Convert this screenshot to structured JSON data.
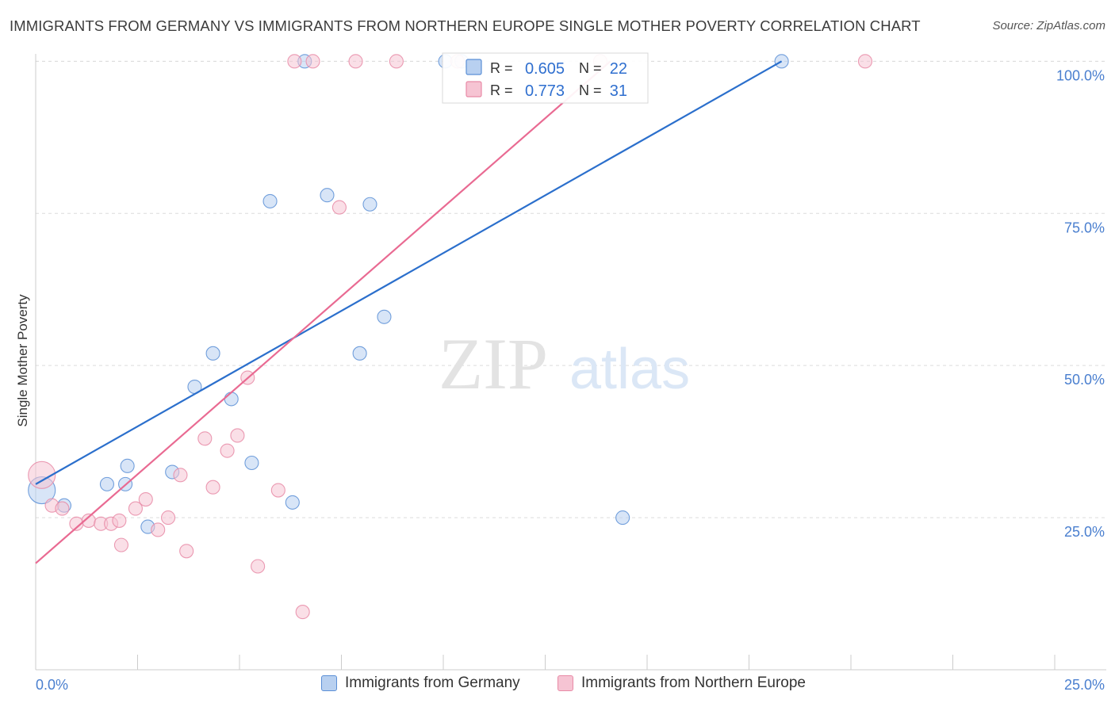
{
  "title": "IMMIGRANTS FROM GERMANY VS IMMIGRANTS FROM NORTHERN EUROPE SINGLE MOTHER POVERTY CORRELATION CHART",
  "source": "Source: ZipAtlas.com",
  "watermark": {
    "zip": "ZIP",
    "atlas": "atlas"
  },
  "chart_data": {
    "type": "scatter",
    "ylabel": "Single Mother Poverty",
    "xlim": [
      0,
      25
    ],
    "ylim": [
      0,
      102
    ],
    "x_tick_labels": [
      "0.0%",
      "25.0%"
    ],
    "y_tick_values": [
      25,
      50,
      75,
      100
    ],
    "y_tick_labels": [
      "25.0%",
      "50.0%",
      "75.0%",
      "100.0%"
    ],
    "grid": true,
    "legend_position": "top-center",
    "series": [
      {
        "name": "Immigrants from Germany",
        "color": "#5b8fd6",
        "fill": "#b8d0f0",
        "line_color": "#2b6fcc",
        "R": "0.605",
        "N": "22",
        "trend": {
          "x": [
            0.0,
            18.3
          ],
          "y": [
            30.5,
            100.0
          ]
        },
        "points": [
          {
            "x": 0.15,
            "y": 29.5,
            "big": true
          },
          {
            "x": 0.7,
            "y": 27.0
          },
          {
            "x": 1.75,
            "y": 30.5
          },
          {
            "x": 2.2,
            "y": 30.5
          },
          {
            "x": 2.25,
            "y": 33.5
          },
          {
            "x": 2.75,
            "y": 23.5
          },
          {
            "x": 3.35,
            "y": 32.5
          },
          {
            "x": 3.9,
            "y": 46.5
          },
          {
            "x": 4.35,
            "y": 52.0
          },
          {
            "x": 4.8,
            "y": 44.5
          },
          {
            "x": 5.3,
            "y": 34.0
          },
          {
            "x": 5.75,
            "y": 77.0
          },
          {
            "x": 6.3,
            "y": 27.5
          },
          {
            "x": 6.6,
            "y": 100.0
          },
          {
            "x": 7.15,
            "y": 78.0
          },
          {
            "x": 7.95,
            "y": 52.0
          },
          {
            "x": 8.2,
            "y": 76.5
          },
          {
            "x": 8.55,
            "y": 58.0
          },
          {
            "x": 10.05,
            "y": 100.0
          },
          {
            "x": 10.45,
            "y": 100.0
          },
          {
            "x": 14.4,
            "y": 25.0
          },
          {
            "x": 18.3,
            "y": 100.0
          }
        ]
      },
      {
        "name": "Immigrants from Northern Europe",
        "color": "#e88aa6",
        "fill": "#f6c4d3",
        "line_color": "#e96a92",
        "R": "0.773",
        "N": "31",
        "trend": {
          "x": [
            0.0,
            14.1
          ],
          "y": [
            17.5,
            100.0
          ]
        },
        "points": [
          {
            "x": 0.15,
            "y": 32.0,
            "big": true
          },
          {
            "x": 0.4,
            "y": 27.0
          },
          {
            "x": 0.65,
            "y": 26.5
          },
          {
            "x": 1.0,
            "y": 24.0
          },
          {
            "x": 1.3,
            "y": 24.5
          },
          {
            "x": 1.6,
            "y": 24.0
          },
          {
            "x": 1.85,
            "y": 24.0
          },
          {
            "x": 2.05,
            "y": 24.5
          },
          {
            "x": 2.1,
            "y": 20.5
          },
          {
            "x": 2.45,
            "y": 26.5
          },
          {
            "x": 2.7,
            "y": 28.0
          },
          {
            "x": 3.0,
            "y": 23.0
          },
          {
            "x": 3.25,
            "y": 25.0
          },
          {
            "x": 3.55,
            "y": 32.0
          },
          {
            "x": 3.7,
            "y": 19.5
          },
          {
            "x": 4.15,
            "y": 38.0
          },
          {
            "x": 4.35,
            "y": 30.0
          },
          {
            "x": 4.7,
            "y": 36.0
          },
          {
            "x": 4.95,
            "y": 38.5
          },
          {
            "x": 5.2,
            "y": 48.0
          },
          {
            "x": 5.45,
            "y": 17.0
          },
          {
            "x": 5.95,
            "y": 29.5
          },
          {
            "x": 6.35,
            "y": 100.0
          },
          {
            "x": 6.55,
            "y": 9.5
          },
          {
            "x": 6.8,
            "y": 100.0
          },
          {
            "x": 7.85,
            "y": 100.0
          },
          {
            "x": 7.45,
            "y": 76.0
          },
          {
            "x": 8.85,
            "y": 100.0
          },
          {
            "x": 10.35,
            "y": 100.0
          },
          {
            "x": 13.85,
            "y": 100.0
          },
          {
            "x": 20.35,
            "y": 100.0
          }
        ]
      }
    ]
  },
  "legend": {
    "r_label": "R =",
    "n_label": "N ="
  }
}
